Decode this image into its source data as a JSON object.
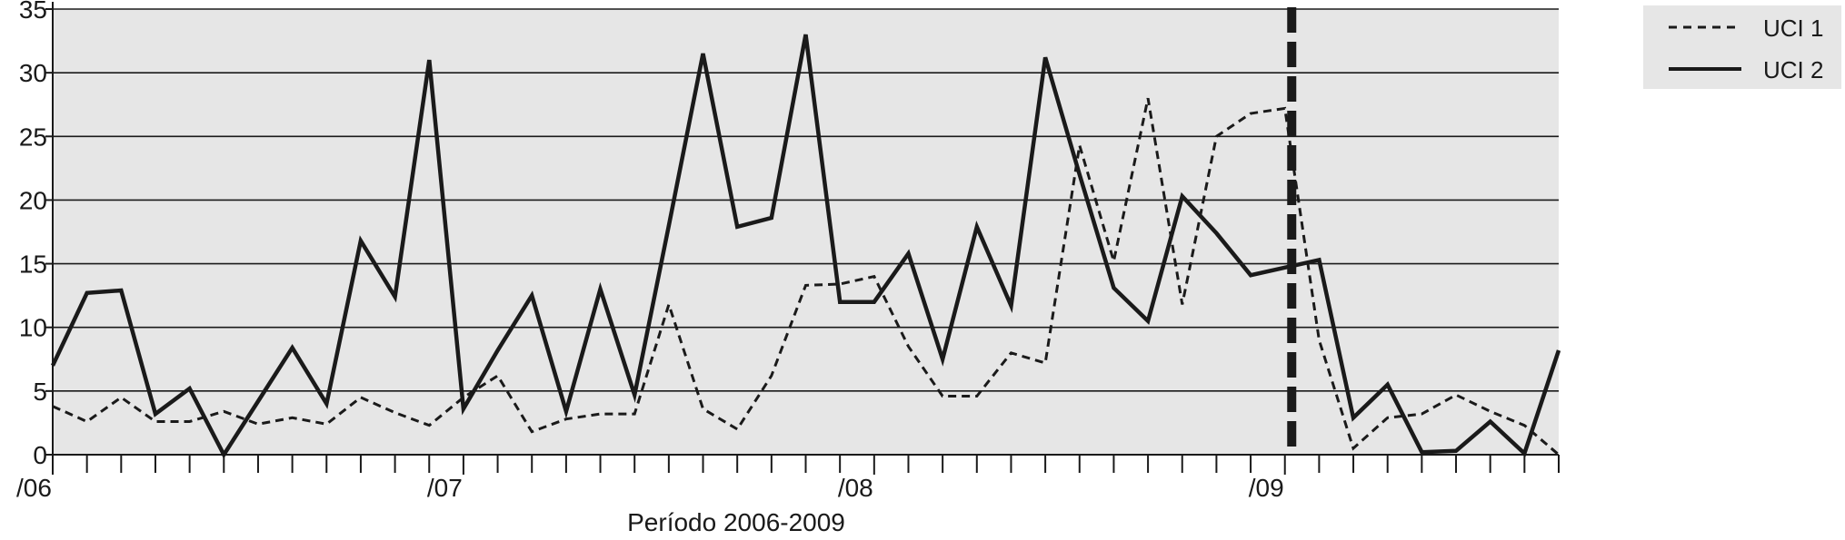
{
  "chart_data": {
    "type": "line",
    "title": "",
    "xlabel": "Período 2006-2009",
    "ylabel": "",
    "ylim": [
      0,
      35
    ],
    "yticks": [
      0,
      5,
      10,
      15,
      20,
      25,
      30,
      35
    ],
    "x_tick_labels": [
      "/06",
      "/07",
      "/08",
      "/09"
    ],
    "grid": "horizontal",
    "legend_position": "top-right",
    "background": "#e6e6e6",
    "series": [
      {
        "name": "UCI 1",
        "style": "dashed",
        "values": [
          3.8,
          2.6,
          4.5,
          2.6,
          2.6,
          3.4,
          2.4,
          2.9,
          2.4,
          4.5,
          3.3,
          2.3,
          4.5,
          6.2,
          1.8,
          2.8,
          3.2,
          3.2,
          11.8,
          3.6,
          2.0,
          6.2,
          13.3,
          13.4,
          14.0,
          8.5,
          4.6,
          4.6,
          8.0,
          7.2,
          24.3,
          15.2,
          28.0,
          11.8,
          25.0,
          26.8,
          27.2,
          9.0,
          0.5,
          2.9,
          3.2,
          4.7,
          3.4,
          2.3,
          0.0
        ]
      },
      {
        "name": "UCI 2",
        "style": "solid",
        "values": [
          7.0,
          12.7,
          12.9,
          3.2,
          5.2,
          0.0,
          4.2,
          8.4,
          4.0,
          16.8,
          12.4,
          31.0,
          3.6,
          8.2,
          12.5,
          3.4,
          13.0,
          4.7,
          18.0,
          31.5,
          17.9,
          18.6,
          33.0,
          12.0,
          12.0,
          15.8,
          7.5,
          17.9,
          11.7,
          31.2,
          22.0,
          13.1,
          10.5,
          20.3,
          17.4,
          14.1,
          14.7,
          15.3,
          2.9,
          5.5,
          0.2,
          0.3,
          2.6,
          0.1,
          8.2
        ]
      }
    ],
    "vertical_marker": {
      "style": "thick-dashed",
      "x_index": 36.2
    }
  }
}
